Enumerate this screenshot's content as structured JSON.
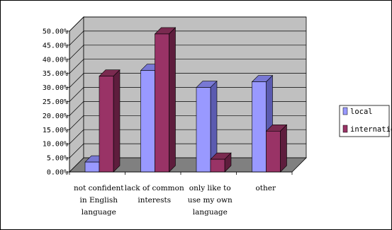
{
  "chart_data": {
    "type": "bar",
    "categories": [
      [
        "not confident",
        "in English",
        "language"
      ],
      [
        "lack of common",
        "interests"
      ],
      [
        "only like to",
        "use my own",
        "language"
      ],
      [
        "other"
      ]
    ],
    "series": [
      {
        "name": "local",
        "values": [
          3.5,
          36.0,
          30.0,
          32.0
        ]
      },
      {
        "name": "international",
        "values": [
          34.0,
          49.0,
          4.5,
          14.5
        ]
      }
    ],
    "ylim": [
      0,
      50
    ],
    "yticks": [
      "0.00%",
      "5.00%",
      "10.00%",
      "15.00%",
      "20.00%",
      "25.00%",
      "30.00%",
      "35.00%",
      "40.00%",
      "45.00%",
      "50.00%"
    ],
    "legend_position": "right",
    "grid": true,
    "three_d": true,
    "colors": {
      "local_front": "#9999ff",
      "local_side": "#5b5bb0",
      "local_top": "#7878d4",
      "international_front": "#993366",
      "international_side": "#5e1d3d",
      "international_top": "#7a2a50",
      "wall": "#c0c0c0",
      "floor": "#808080"
    }
  }
}
